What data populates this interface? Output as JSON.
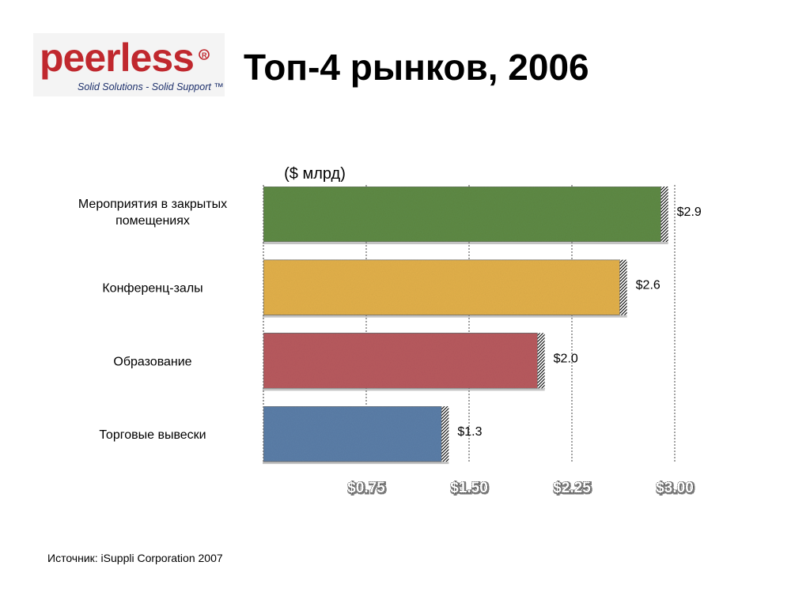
{
  "header": {
    "title": "Топ-4 рынков, 2006",
    "logo": {
      "brand": "peerless",
      "tagline": "Solid Solutions - Solid Support ™",
      "brand_color": "#c0282e"
    }
  },
  "footer": {
    "source": "Источник: iSuppli Corporation 2007"
  },
  "chart_data": {
    "type": "bar",
    "orientation": "horizontal",
    "unit_label": "($ млрд)",
    "categories": [
      "Мероприятия в закрытых помещениях",
      "Конференц-залы",
      "Образование",
      "Торговые вывески"
    ],
    "values": [
      2.9,
      2.6,
      2.0,
      1.3
    ],
    "value_labels": [
      "$2.9",
      "$2.6",
      "$2.0",
      "$1.3"
    ],
    "bar_colors": [
      "#5e8a45",
      "#e2b04a",
      "#b85a5e",
      "#5b7ea8"
    ],
    "x_ticks": [
      0.75,
      1.5,
      2.25,
      3.0
    ],
    "x_tick_labels": [
      "$0.75",
      "$1.50",
      "$2.25",
      "$3.00"
    ],
    "xlim": [
      0,
      3.0
    ],
    "grid": true,
    "xlabel": "",
    "ylabel": ""
  }
}
